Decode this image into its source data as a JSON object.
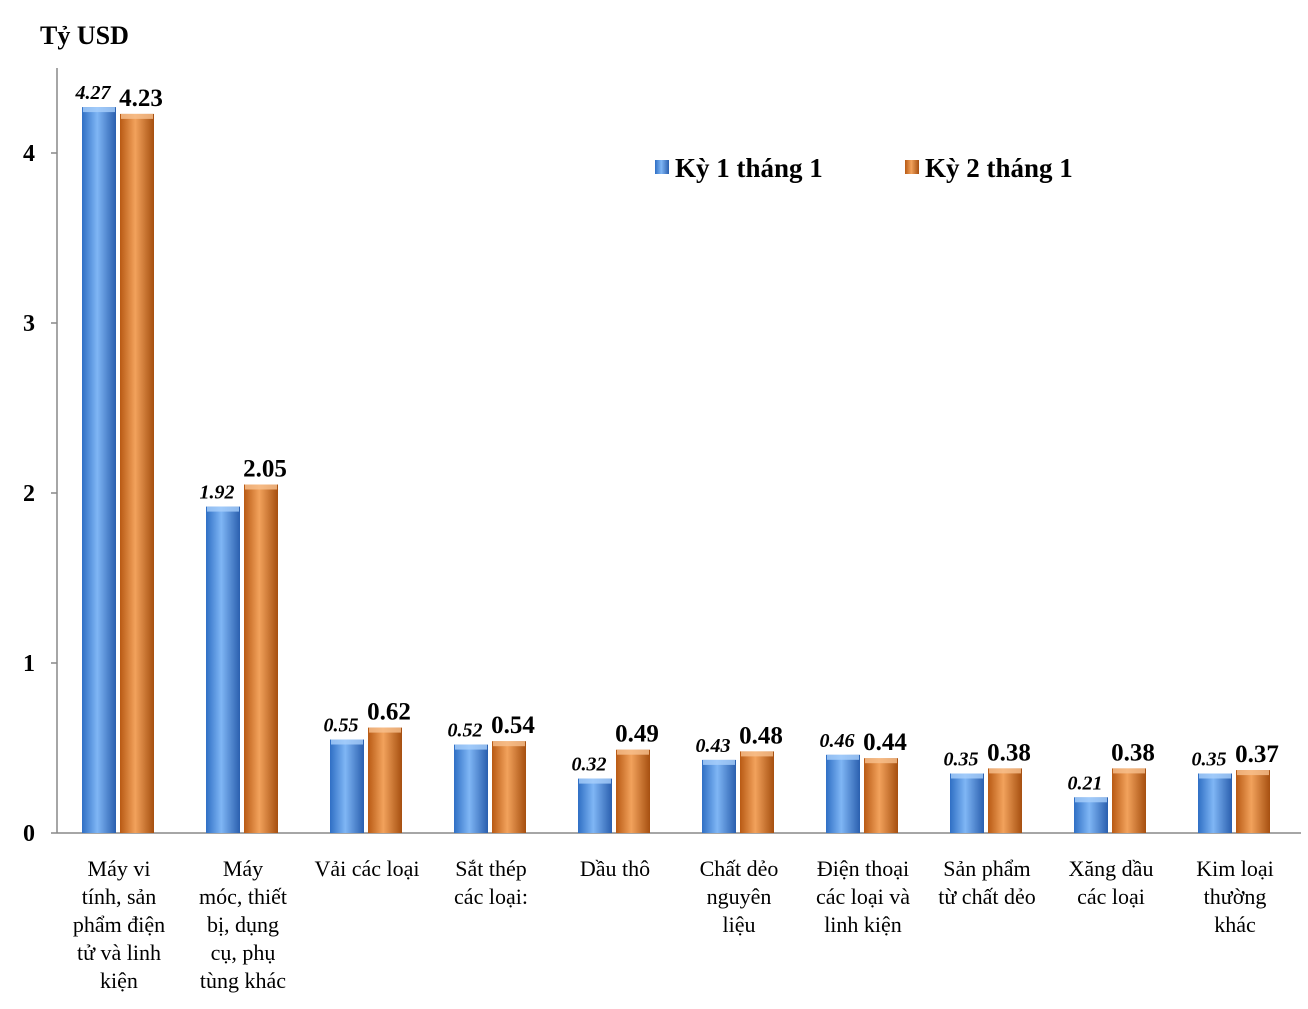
{
  "chart_data": {
    "type": "bar",
    "ylabel": "Tỷ USD",
    "ylim": [
      0,
      4.5
    ],
    "yticks": [
      0,
      1,
      2,
      3,
      4
    ],
    "grid": false,
    "legend_position": "top-right",
    "categories": [
      "Máy vi tính, sản phẩm điện tử và linh kiện",
      "Máy móc, thiết bị, dụng cụ, phụ tùng khác",
      "Vải các loại",
      "Sắt thép các loại:",
      "Dầu thô",
      "Chất dẻo nguyên liệu",
      "Điện thoại các loại và linh kiện",
      "Sản phẩm từ chất dẻo",
      "Xăng dầu các loại",
      "Kim loại thường khác"
    ],
    "category_lines": [
      [
        "Máy vi",
        "tính, sản",
        "phẩm điện",
        "tử và linh",
        "kiện"
      ],
      [
        "Máy",
        "móc, thiết",
        "bị, dụng",
        "cụ, phụ",
        "tùng khác"
      ],
      [
        "Vải các loại"
      ],
      [
        "Sắt thép",
        "các loại:"
      ],
      [
        "Dầu thô"
      ],
      [
        "Chất dẻo",
        "nguyên",
        "liệu"
      ],
      [
        "Điện thoại",
        "các loại và",
        "linh kiện"
      ],
      [
        "Sản phẩm",
        "từ chất dẻo"
      ],
      [
        "Xăng dầu",
        "các loại"
      ],
      [
        "Kim loại",
        "thường",
        "khác"
      ]
    ],
    "series": [
      {
        "name": "Kỳ 1 tháng 1",
        "color": "#4a8fe0",
        "values": [
          4.27,
          1.92,
          0.55,
          0.52,
          0.32,
          0.43,
          0.46,
          0.35,
          0.21,
          0.35
        ],
        "labels": [
          "4.27",
          "1.92",
          "0.55",
          "0.52",
          "0.32",
          "0.43",
          "0.46",
          "0.35",
          "0.21",
          "0.35"
        ]
      },
      {
        "name": "Kỳ 2 tháng 1",
        "color": "#e07a2a",
        "values": [
          4.23,
          2.05,
          0.62,
          0.54,
          0.49,
          0.48,
          0.44,
          0.38,
          0.38,
          0.37
        ],
        "labels": [
          "4.23",
          "2.05",
          "0.62",
          "0.54",
          "0.49",
          "0.48",
          "0.44",
          "0.38",
          "0.38",
          "0.37"
        ]
      }
    ]
  }
}
